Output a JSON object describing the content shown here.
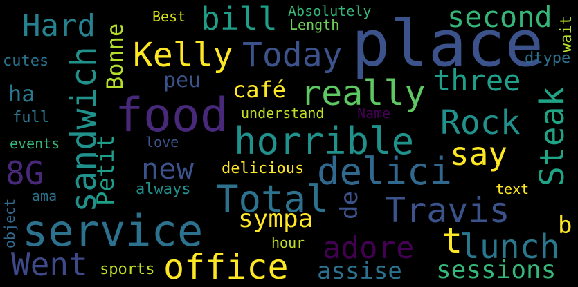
{
  "words": {
    "place": {
      "text": "place",
      "color": "#3b528b"
    },
    "food": {
      "text": "food",
      "color": "#482878"
    },
    "service": {
      "text": "service",
      "color": "#2c728e"
    },
    "horrible": {
      "text": "horrible",
      "color": "#21918c"
    },
    "delici": {
      "text": "delici",
      "color": "#31688e"
    },
    "total": {
      "text": "Total",
      "color": "#2c728e"
    },
    "really": {
      "text": "really",
      "color": "#5ec962"
    },
    "sandwich": {
      "text": "sandwich",
      "color": "#21918c"
    },
    "travis": {
      "text": "Travis",
      "color": "#3b528b"
    },
    "office": {
      "text": "office",
      "color": "#fde725"
    },
    "kelly": {
      "text": "Kelly",
      "color": "#fde725"
    },
    "today": {
      "text": "Today",
      "color": "#3b528b"
    },
    "bill": {
      "text": "bill",
      "color": "#1f9e89"
    },
    "hard": {
      "text": "Hard",
      "color": "#26828e"
    },
    "second": {
      "text": "second",
      "color": "#35b779"
    },
    "rock": {
      "text": "Rock",
      "color": "#21918c"
    },
    "steak": {
      "text": "Steak",
      "color": "#20a486"
    },
    "lunch": {
      "text": "lunch",
      "color": "#2a788e"
    },
    "went": {
      "text": "Went",
      "color": "#3e4989"
    },
    "adore": {
      "text": "adore",
      "color": "#440154"
    },
    "sessions": {
      "text": "sessions",
      "color": "#35b779"
    },
    "new": {
      "text": "new",
      "color": "#3b528b"
    },
    "say": {
      "text": "say",
      "color": "#fde725"
    },
    "three": {
      "text": "three",
      "color": "#1f9e89"
    },
    "sympa": {
      "text": "sympa",
      "color": "#fde725"
    },
    "assise": {
      "text": "assise",
      "color": "#2c728e"
    },
    "8g": {
      "text": "8G",
      "color": "#482878"
    },
    "petit": {
      "text": "Petit",
      "color": "#1f9e89"
    },
    "bonne": {
      "text": "Bonne",
      "color": "#b5de2b"
    },
    "cafe": {
      "text": "café",
      "color": "#fde725"
    },
    "peu": {
      "text": "peu",
      "color": "#3b528b"
    },
    "ha": {
      "text": "ha",
      "color": "#2a788e"
    },
    "t": {
      "text": "t",
      "color": "#fde725"
    },
    "b": {
      "text": "b",
      "color": "#fde725"
    },
    "de": {
      "text": "de",
      "color": "#3b528b"
    },
    "best": {
      "text": "Best",
      "color": "#d8e219"
    },
    "absolutely": {
      "text": "Absolutely",
      "color": "#35b779"
    },
    "length": {
      "text": "Length",
      "color": "#6ece58"
    },
    "cutes": {
      "text": "cutes",
      "color": "#2c728e"
    },
    "dtype": {
      "text": "dtype",
      "color": "#2c728e"
    },
    "wait": {
      "text": "wait",
      "color": "#b5de2b"
    },
    "understand": {
      "text": "understand",
      "color": "#c2df23"
    },
    "name": {
      "text": "Name",
      "color": "#440154"
    },
    "full": {
      "text": "full",
      "color": "#2a788e"
    },
    "events": {
      "text": "events",
      "color": "#35b779"
    },
    "love": {
      "text": "love",
      "color": "#3b528b"
    },
    "delicious": {
      "text": "delicious",
      "color": "#fde725"
    },
    "always": {
      "text": "always",
      "color": "#21918c"
    },
    "text": {
      "text": "text",
      "color": "#fde725"
    },
    "ama": {
      "text": "ama",
      "color": "#2c728e"
    },
    "object": {
      "text": "object",
      "color": "#31688e"
    },
    "hour": {
      "text": "hour",
      "color": "#c2df23"
    },
    "sports": {
      "text": "sports",
      "color": "#c2df23"
    }
  }
}
